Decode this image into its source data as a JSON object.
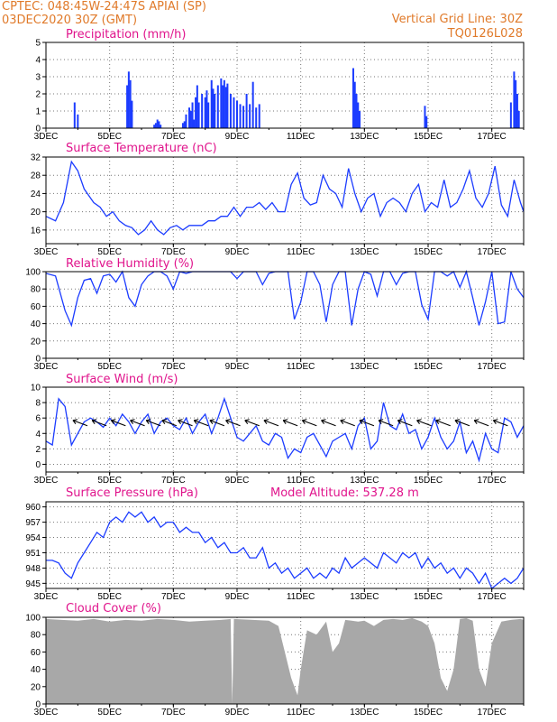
{
  "header": {
    "line1": "CPTEC:  048:45W-24:47S  APIAI (SP)",
    "line2": "03DEC2020 30Z (GMT)",
    "right1": "Vertical Grid Line: 30Z",
    "right2": "TQ0126L028"
  },
  "colors": {
    "header": "#e07a2a",
    "title": "#e0148c",
    "series": "#1c3cff",
    "bars": "#1c3cff",
    "cloud": "#a8a8a8",
    "axes": "#000000"
  },
  "x_axis": {
    "start_day": 3,
    "end_day": 18,
    "labels": [
      "3DEC",
      "5DEC",
      "7DEC",
      "9DEC",
      "11DEC",
      "13DEC",
      "15DEC",
      "17DEC"
    ],
    "label_days": [
      3,
      5,
      7,
      9,
      11,
      13,
      15,
      17
    ]
  },
  "chart_data": [
    {
      "key": "precip",
      "type": "bar",
      "title": "Precipitation (mm/h)",
      "ylim": [
        0,
        5
      ],
      "yticks": [
        0,
        1,
        2,
        3,
        4,
        5
      ],
      "x": [
        3.9,
        4.0,
        5.55,
        5.6,
        5.65,
        5.7,
        6.4,
        6.45,
        6.5,
        6.55,
        6.6,
        7.3,
        7.35,
        7.4,
        7.5,
        7.55,
        7.6,
        7.65,
        7.7,
        7.75,
        7.8,
        7.9,
        8.0,
        8.05,
        8.1,
        8.2,
        8.25,
        8.3,
        8.4,
        8.5,
        8.55,
        8.6,
        8.65,
        8.7,
        8.8,
        8.9,
        9.0,
        9.1,
        9.2,
        9.3,
        9.4,
        9.5,
        9.6,
        9.7,
        12.65,
        12.7,
        12.75,
        12.8,
        12.85,
        14.9,
        14.95,
        17.6,
        17.7,
        17.75,
        17.8,
        17.85
      ],
      "values": [
        1.5,
        0.8,
        2.5,
        3.3,
        2.8,
        1.6,
        0.2,
        0.3,
        0.5,
        0.4,
        0.2,
        0.3,
        0.4,
        0.8,
        1.2,
        1.0,
        1.5,
        0.5,
        1.8,
        2.5,
        1.5,
        2.0,
        1.8,
        2.2,
        1.5,
        2.8,
        2.3,
        2.0,
        2.5,
        2.9,
        2.5,
        2.8,
        2.4,
        2.6,
        2.0,
        1.8,
        1.6,
        1.4,
        1.3,
        2.0,
        1.4,
        2.7,
        1.2,
        1.4,
        3.5,
        2.7,
        2.0,
        1.5,
        1.0,
        1.3,
        0.7,
        1.5,
        3.3,
        2.8,
        2.0,
        1.0
      ]
    },
    {
      "key": "temp",
      "type": "line",
      "title": "Surface Temperature (nC)",
      "ylim": [
        13,
        32
      ],
      "yticks": [
        16,
        20,
        24,
        28,
        32
      ],
      "x": [
        3.0,
        3.3,
        3.55,
        3.8,
        4.0,
        4.2,
        4.5,
        4.7,
        4.9,
        5.1,
        5.3,
        5.5,
        5.7,
        5.9,
        6.1,
        6.3,
        6.5,
        6.7,
        6.9,
        7.1,
        7.3,
        7.5,
        7.7,
        7.9,
        8.1,
        8.3,
        8.5,
        8.7,
        8.9,
        9.1,
        9.3,
        9.5,
        9.7,
        9.9,
        10.1,
        10.3,
        10.5,
        10.7,
        10.9,
        11.1,
        11.3,
        11.5,
        11.7,
        11.9,
        12.1,
        12.3,
        12.5,
        12.7,
        12.9,
        13.1,
        13.3,
        13.5,
        13.7,
        13.9,
        14.1,
        14.3,
        14.5,
        14.7,
        14.9,
        15.1,
        15.3,
        15.5,
        15.7,
        15.9,
        16.1,
        16.3,
        16.5,
        16.7,
        16.9,
        17.1,
        17.3,
        17.5,
        17.7,
        17.9,
        18.0
      ],
      "values": [
        19,
        18,
        22,
        31,
        29,
        25,
        22,
        21,
        19,
        20,
        18,
        17,
        16.5,
        15,
        16,
        18,
        16,
        15,
        16.5,
        17,
        16,
        17,
        17,
        17,
        18,
        18,
        19,
        19,
        21,
        19,
        21,
        21,
        22,
        20.5,
        22,
        20,
        20,
        26,
        28.5,
        23,
        21.5,
        22,
        28,
        25,
        24,
        21,
        29.5,
        24,
        20,
        23,
        24,
        19,
        22,
        23,
        22,
        20,
        24,
        26,
        20,
        22,
        21,
        27,
        21,
        22,
        25,
        29,
        23,
        21,
        24,
        30,
        21.5,
        19,
        27,
        22,
        20
      ]
    },
    {
      "key": "rh",
      "type": "line",
      "title": "Relative Humidity (%)",
      "ylim": [
        0,
        100
      ],
      "yticks": [
        0,
        20,
        40,
        60,
        80,
        100
      ],
      "x": [
        3.0,
        3.3,
        3.6,
        3.8,
        4.0,
        4.2,
        4.4,
        4.6,
        4.8,
        5.0,
        5.2,
        5.4,
        5.6,
        5.8,
        6.0,
        6.2,
        6.4,
        6.6,
        6.8,
        7.0,
        7.2,
        7.4,
        7.6,
        7.8,
        8.0,
        8.2,
        8.4,
        8.6,
        8.8,
        9.0,
        9.2,
        9.4,
        9.6,
        9.8,
        10.0,
        10.2,
        10.4,
        10.6,
        10.8,
        11.0,
        11.2,
        11.4,
        11.6,
        11.8,
        12.0,
        12.2,
        12.4,
        12.6,
        12.8,
        13.0,
        13.2,
        13.4,
        13.6,
        13.8,
        14.0,
        14.2,
        14.4,
        14.6,
        14.8,
        15.0,
        15.2,
        15.4,
        15.6,
        15.8,
        16.0,
        16.2,
        16.4,
        16.6,
        16.8,
        17.0,
        17.2,
        17.4,
        17.6,
        17.8,
        18.0
      ],
      "values": [
        98,
        95,
        55,
        38,
        70,
        90,
        92,
        75,
        95,
        97,
        88,
        100,
        70,
        60,
        85,
        95,
        100,
        100,
        95,
        80,
        100,
        98,
        100,
        100,
        100,
        100,
        100,
        100,
        100,
        92,
        100,
        100,
        100,
        85,
        98,
        100,
        100,
        100,
        45,
        65,
        100,
        100,
        85,
        42,
        85,
        100,
        100,
        38,
        80,
        100,
        97,
        72,
        100,
        100,
        85,
        98,
        100,
        100,
        62,
        45,
        100,
        100,
        95,
        100,
        82,
        100,
        70,
        38,
        65,
        100,
        40,
        42,
        100,
        80,
        70
      ]
    },
    {
      "key": "wind",
      "type": "line",
      "title": "Surface Wind (m/s)",
      "ylim": [
        -1,
        10
      ],
      "yticks": [
        0,
        2,
        4,
        6,
        8,
        10
      ],
      "x": [
        3.0,
        3.2,
        3.4,
        3.6,
        3.8,
        4.0,
        4.2,
        4.4,
        4.6,
        4.8,
        5.0,
        5.2,
        5.4,
        5.6,
        5.8,
        6.0,
        6.2,
        6.4,
        6.6,
        6.8,
        7.0,
        7.2,
        7.4,
        7.6,
        7.8,
        8.0,
        8.2,
        8.4,
        8.6,
        8.8,
        9.0,
        9.2,
        9.4,
        9.6,
        9.8,
        10.0,
        10.2,
        10.4,
        10.6,
        10.8,
        11.0,
        11.2,
        11.4,
        11.6,
        11.8,
        12.0,
        12.2,
        12.4,
        12.6,
        12.8,
        13.0,
        13.2,
        13.4,
        13.6,
        13.8,
        14.0,
        14.2,
        14.4,
        14.6,
        14.8,
        15.0,
        15.2,
        15.4,
        15.6,
        15.8,
        16.0,
        16.2,
        16.4,
        16.6,
        16.8,
        17.0,
        17.2,
        17.4,
        17.6,
        17.8,
        18.0
      ],
      "values": [
        3,
        2.5,
        8.5,
        7.5,
        2.5,
        4,
        5.5,
        6,
        5.5,
        4.8,
        6,
        5,
        6.5,
        5.5,
        4,
        5.5,
        6.5,
        4,
        5.5,
        6,
        5,
        4.5,
        6,
        4,
        5.5,
        6.5,
        4,
        6,
        8.5,
        6,
        3.5,
        3,
        4,
        5,
        3,
        2.5,
        4,
        3.5,
        0.8,
        2,
        1.5,
        3.5,
        4,
        2.5,
        1,
        3,
        3.5,
        4,
        2,
        5,
        6,
        2,
        3,
        8,
        5,
        4.5,
        6.5,
        4,
        4.5,
        2,
        3.5,
        6,
        3.5,
        2,
        3,
        5.5,
        1.5,
        3,
        0.5,
        4,
        2,
        1.5,
        6,
        5.5,
        3.5,
        5
      ]
    },
    {
      "key": "pressure",
      "type": "line",
      "title": "Surface Pressure (hPa)",
      "annotation": "Model Altitude: 537.28 m",
      "ylim": [
        944,
        961
      ],
      "yticks": [
        945,
        948,
        951,
        954,
        957,
        960
      ],
      "x": [
        3.0,
        3.2,
        3.4,
        3.6,
        3.8,
        4.0,
        4.2,
        4.4,
        4.6,
        4.8,
        5.0,
        5.2,
        5.4,
        5.6,
        5.8,
        6.0,
        6.2,
        6.4,
        6.6,
        6.8,
        7.0,
        7.2,
        7.4,
        7.6,
        7.8,
        8.0,
        8.2,
        8.4,
        8.6,
        8.8,
        9.0,
        9.2,
        9.4,
        9.6,
        9.8,
        10.0,
        10.2,
        10.4,
        10.6,
        10.8,
        11.0,
        11.2,
        11.4,
        11.6,
        11.8,
        12.0,
        12.2,
        12.4,
        12.6,
        12.8,
        13.0,
        13.2,
        13.4,
        13.6,
        13.8,
        14.0,
        14.2,
        14.4,
        14.6,
        14.8,
        15.0,
        15.2,
        15.4,
        15.6,
        15.8,
        16.0,
        16.2,
        16.4,
        16.6,
        16.8,
        17.0,
        17.2,
        17.4,
        17.6,
        17.8,
        18.0
      ],
      "values": [
        949.5,
        949.5,
        949,
        947,
        946,
        949,
        951,
        953,
        955,
        954,
        957,
        958,
        957,
        959,
        958,
        959,
        957,
        958,
        956,
        957,
        957,
        955,
        956,
        955,
        955,
        953,
        954,
        952,
        953,
        951,
        951,
        952,
        950,
        950,
        952,
        948,
        949,
        947,
        948,
        946,
        947,
        948,
        946,
        947,
        946,
        948,
        947,
        950,
        948,
        949,
        950,
        949,
        948,
        951,
        950,
        949,
        951,
        950,
        951,
        948,
        950,
        948,
        949,
        947,
        948,
        946,
        948,
        947,
        945,
        947,
        944,
        945,
        946,
        945,
        946,
        948
      ]
    },
    {
      "key": "cloud",
      "type": "area",
      "title": "Cloud Cover (%)",
      "ylim": [
        0,
        100
      ],
      "yticks": [
        0,
        20,
        40,
        60,
        80,
        100
      ],
      "x": [
        3.0,
        3.5,
        4.0,
        4.5,
        5.0,
        5.5,
        6.0,
        6.5,
        7.0,
        7.5,
        8.0,
        8.5,
        8.8,
        8.85,
        8.9,
        9.5,
        10.0,
        10.3,
        10.5,
        10.7,
        10.9,
        11.0,
        11.2,
        11.5,
        11.8,
        12.0,
        12.2,
        12.4,
        12.6,
        12.8,
        13.0,
        13.3,
        13.6,
        13.9,
        14.2,
        14.5,
        14.8,
        15.0,
        15.2,
        15.4,
        15.6,
        15.8,
        16.0,
        16.2,
        16.4,
        16.6,
        16.8,
        17.0,
        17.3,
        17.6,
        17.9,
        18.0
      ],
      "values": [
        98,
        97,
        96,
        98,
        95,
        97,
        96,
        98,
        97,
        95,
        96,
        97,
        98,
        0,
        98,
        97,
        96,
        90,
        60,
        30,
        10,
        40,
        85,
        80,
        95,
        60,
        70,
        97,
        96,
        95,
        96,
        90,
        97,
        98,
        97,
        99,
        95,
        90,
        70,
        30,
        15,
        40,
        98,
        99,
        96,
        40,
        20,
        70,
        95,
        97,
        98,
        97
      ]
    }
  ]
}
